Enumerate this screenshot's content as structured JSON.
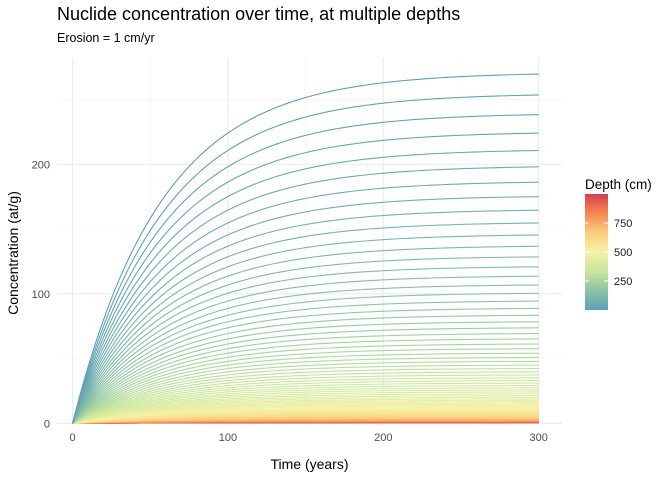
{
  "chart_data": {
    "type": "line",
    "title": "Nuclide concentration over time, at multiple depths",
    "subtitle": "Erosion = 1 cm/yr",
    "xlabel": "Time (years)",
    "ylabel": "Concentration (at/g)",
    "xlim": [
      -10,
      315
    ],
    "ylim": [
      -2,
      282
    ],
    "x_ticks": [
      0,
      100,
      200,
      300
    ],
    "y_ticks": [
      0,
      100,
      200
    ],
    "x_range": [
      0,
      300
    ],
    "grid": true,
    "legend": {
      "title": "Depth (cm)",
      "position": "right",
      "ticks": [
        250,
        500,
        750
      ],
      "range": [
        0,
        1000
      ],
      "colors": [
        "#5E9FB8",
        "#8CC3A4",
        "#C9E79D",
        "#F5F2A6",
        "#FDCD7E",
        "#F5884F",
        "#D53E4F"
      ]
    },
    "series_model": {
      "description": "one line per depth",
      "depths_start": 0,
      "depths_end": 1000,
      "depths_step": 10,
      "equilibrium_at_surface": 271,
      "attenuation_length_cm": 162,
      "time_constant_years": 57
    }
  }
}
